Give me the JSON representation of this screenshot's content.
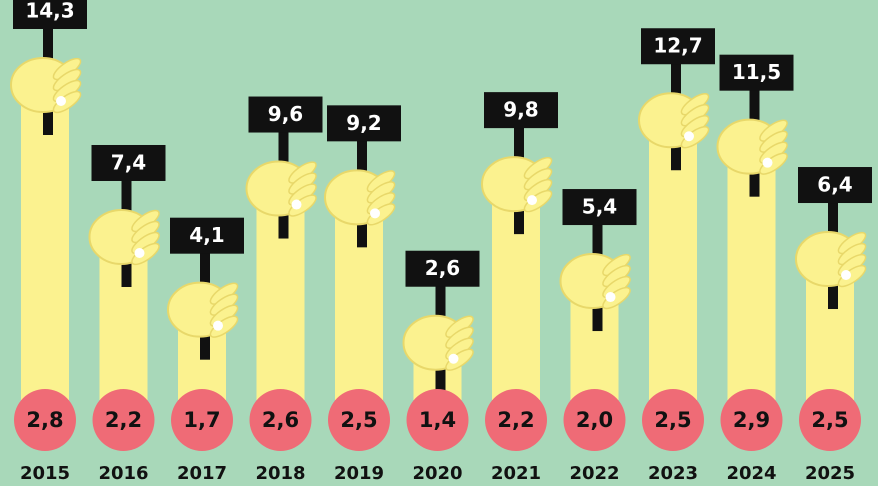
{
  "chart_data": {
    "type": "fist-bar",
    "categories": [
      "2015",
      "2016",
      "2017",
      "2018",
      "2019",
      "2020",
      "2021",
      "2022",
      "2023",
      "2024",
      "2025"
    ],
    "series": [
      {
        "color": "#fbf28f",
        "values": [
          14.3,
          7.4,
          4.1,
          9.6,
          9.2,
          2.6,
          9.8,
          5.4,
          12.7,
          11.5,
          6.4
        ],
        "value_labels": [
          "14,3",
          "7,4",
          "4,1",
          "9,6",
          "9,2",
          "2,6",
          "9,8",
          "5,4",
          "12,7",
          "11,5",
          "6,4"
        ]
      },
      {
        "color": "#ef6b76",
        "values": [
          2.8,
          2.2,
          1.7,
          2.6,
          2.5,
          1.4,
          2.2,
          2.0,
          2.5,
          2.9,
          2.5
        ],
        "value_labels": [
          "2,8",
          "2,2",
          "1,7",
          "2,6",
          "2,5",
          "1,4",
          "2,2",
          "2,0",
          "2,5",
          "2,9",
          "2,5"
        ]
      }
    ]
  }
}
